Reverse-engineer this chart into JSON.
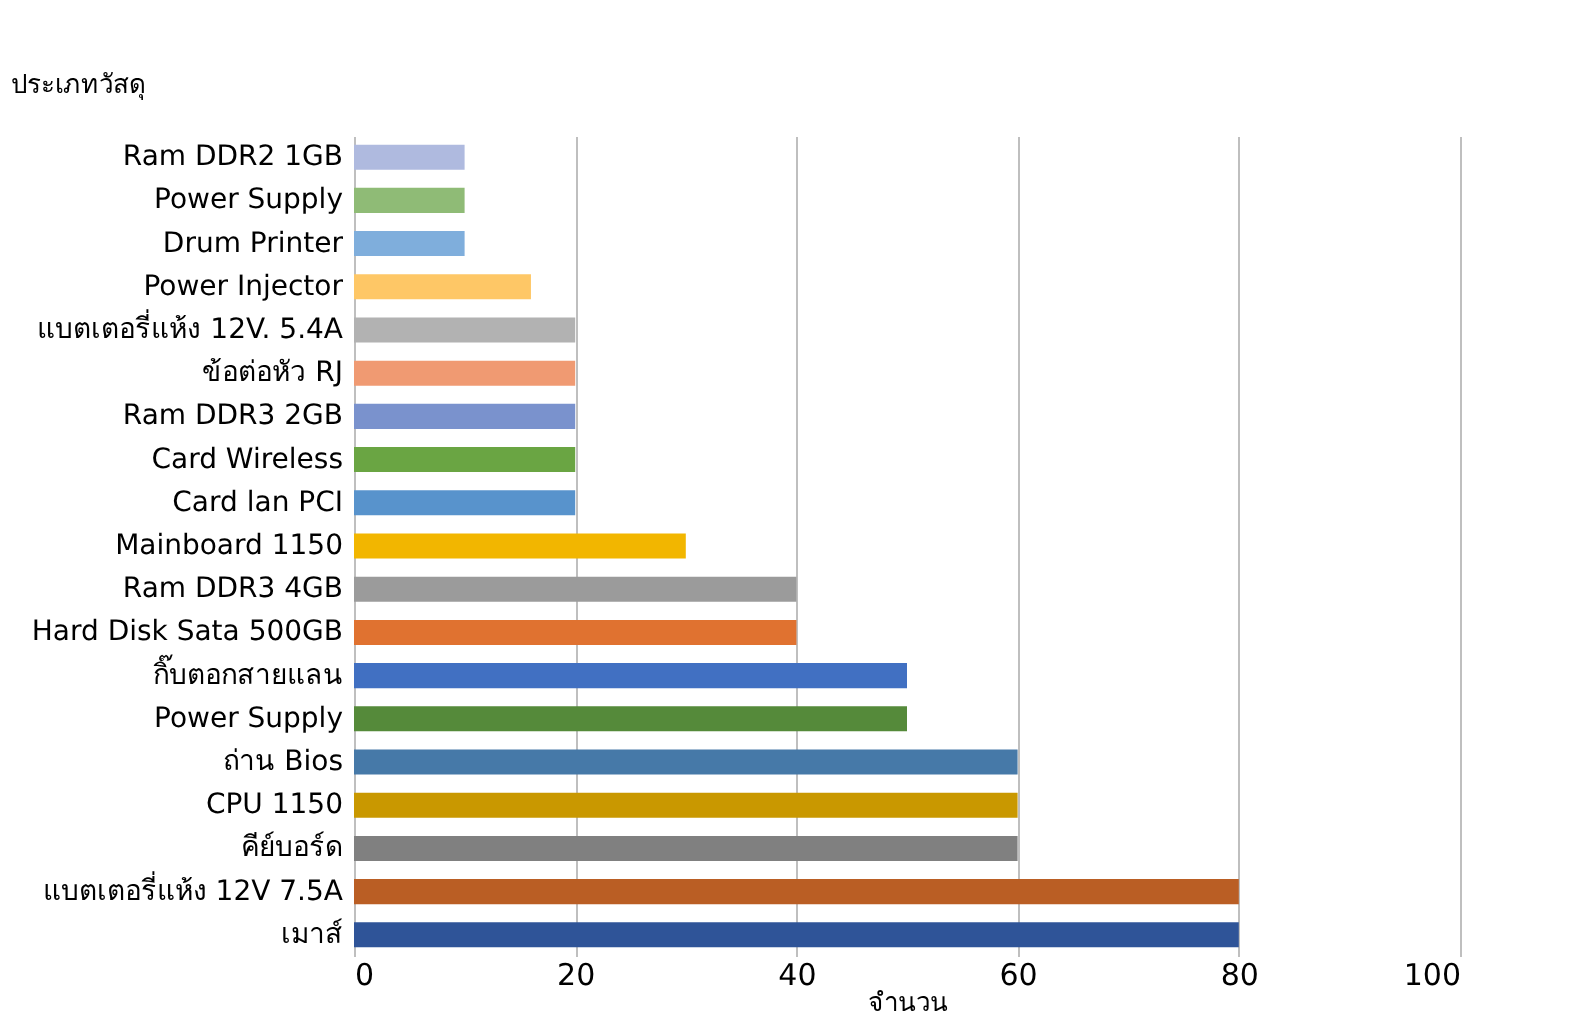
{
  "chart_data": {
    "type": "bar",
    "orientation": "horizontal",
    "ylabel": "ประเภทวัสดุ",
    "xlabel": "จำนวน",
    "categories": [
      "Ram DDR2 1GB",
      "Power Supply",
      "Drum Printer",
      "Power Injector",
      "แบตเตอรี่แห้ง 12V. 5.4A",
      "ข้อต่อหัว RJ",
      "Ram DDR3 2GB",
      "Card Wireless",
      "Card lan PCI",
      "Mainboard 1150",
      "Ram DDR3 4GB",
      "Hard Disk Sata 500GB",
      "กิ๊บตอกสายแลน",
      "Power Supply",
      "ถ่าน Bios",
      "CPU 1150",
      "คีย์บอร์ด",
      "แบตเตอรี่แห้ง 12V 7.5A",
      "เมาส์"
    ],
    "values": [
      10,
      10,
      10,
      16,
      20,
      20,
      20,
      20,
      20,
      30,
      40,
      40,
      50,
      50,
      60,
      60,
      60,
      80,
      80
    ],
    "colors": [
      "#afbadf",
      "#8fbb76",
      "#7faedc",
      "#fec766",
      "#b2b2b2",
      "#f09a72",
      "#7a92cd",
      "#6aa543",
      "#5893cc",
      "#f2b600",
      "#9b9b9b",
      "#e07230",
      "#4170c2",
      "#558a3a",
      "#4679a8",
      "#c99800",
      "#808080",
      "#ba5e24",
      "#2f5498"
    ],
    "xlim": [
      0,
      100
    ],
    "xticks": [
      0,
      20,
      40,
      60,
      80,
      100
    ],
    "grid": "x"
  }
}
